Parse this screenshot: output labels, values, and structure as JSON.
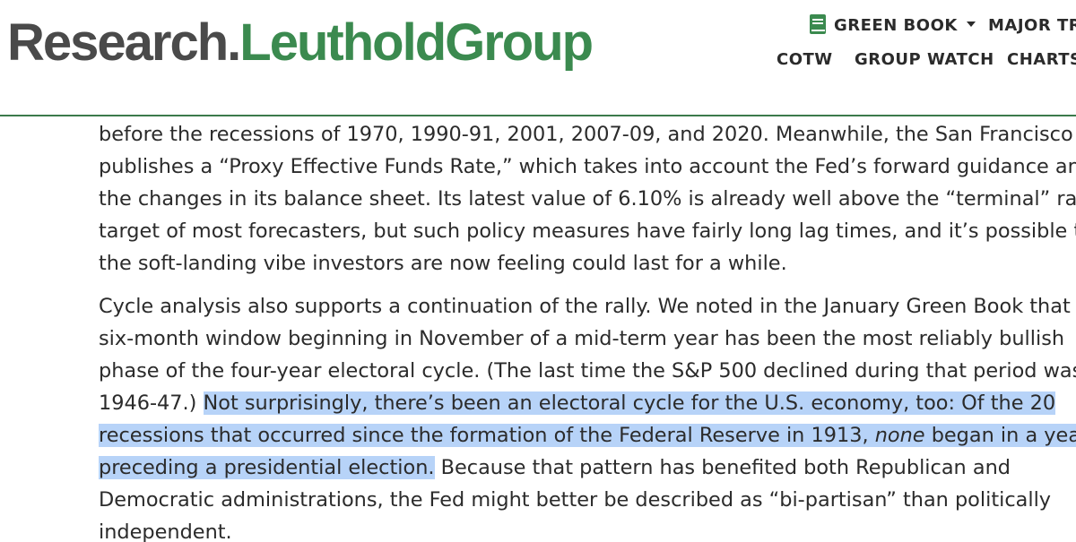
{
  "header": {
    "logo_part1": "Research.",
    "logo_part2": "LeutholdGroup",
    "nav_top": {
      "green_book": "GREEN BOOK",
      "major_trends": "MAJOR TRE"
    },
    "nav_bottom": {
      "cotw": "COTW",
      "group_watch": "GROUP WATCH",
      "charts": "CHARTS"
    },
    "icons": {
      "book": "book-icon",
      "dropdown": "caret-down-icon"
    }
  },
  "colors": {
    "brand_green": "#3b8a4f",
    "logo_gray": "#4a4a4a",
    "selection_blue": "#b7d3f8",
    "text": "#2b2b2b"
  },
  "article": {
    "para1": [
      "before the recessions of 1970, 1990-91, 2001, 2007-09, and 2020. Meanwhile, the San Francisco Fed",
      "publishes a “Proxy Effective Funds Rate,” which takes into account the Fed’s forward guidance and",
      "the changes in its balance sheet. Its latest value of 6.10% is already well above the “terminal” rate",
      "target of most forecasters, but such policy measures have fairly long lag times, and it’s possible that",
      "the soft-landing vibe investors are now feeling could last for a while."
    ],
    "para2": {
      "line1": "Cycle analysis also supports a continuation of the rally. We noted in the January Green Book that the",
      "line2": "six-month window beginning in November of a mid-term year has been the most reliably bullish",
      "line3": "phase of the four-year electoral cycle. (The last time the S&P 500 declined during that period was",
      "line4_plain": "1946-47.) ",
      "line4_hl": "Not surprisingly, there’s been an electoral cycle for the U.S. economy, too: Of the 20",
      "line5_hl_a": "recessions that occurred since the formation of the Federal Reserve in 1913, ",
      "line5_hl_italic": "none",
      "line5_hl_b": " began in a year",
      "line6_hl": "preceding a presidential election.",
      "line6_plain": " Because that pattern has benefited both Republican and",
      "line7": "Democratic administrations, the Fed might better be described as “bi-partisan” than politically",
      "line8": "independent."
    }
  }
}
